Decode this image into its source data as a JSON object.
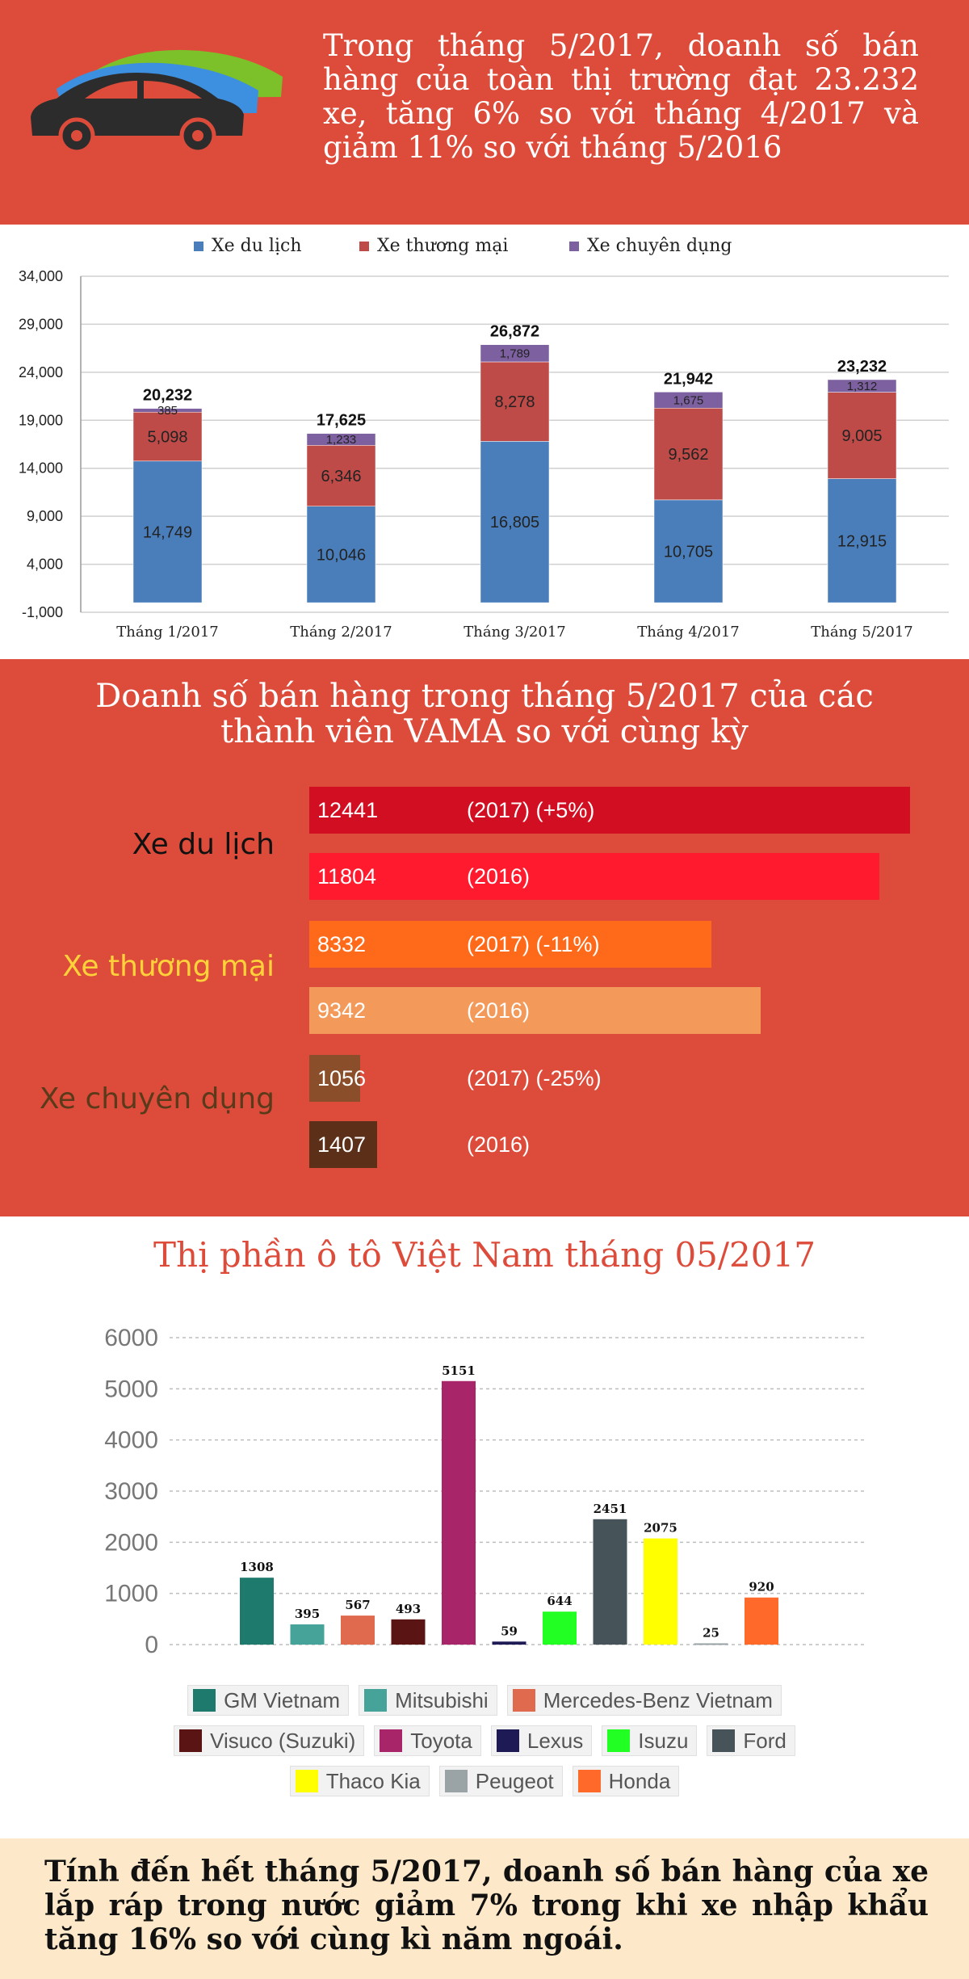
{
  "header": {
    "text": "Trong tháng 5/2017, doanh số bán hàng của toàn thị trường đạt 23.232 xe, tăng 6% so với tháng 4/2017 và giảm 11% so với tháng 5/2016"
  },
  "vama": {
    "title_line1": "Doanh số bán hàng trong tháng 5/2017 của các",
    "title_line2": "thành viên VAMA so với cùng kỳ",
    "groups": [
      {
        "label": "Xe du lịch",
        "label_color": "#111111",
        "value_2017": 12441,
        "value_2016": 11804,
        "value_2017_text": "12441",
        "value_2016_text": "11804",
        "note_2017": "(2017)  (+5%)",
        "note_2016": "(2016)",
        "color_2017": "#d20f22",
        "color_2016": "#ff1a2e"
      },
      {
        "label": "Xe thương mại",
        "label_color": "#ffd23a",
        "value_2017": 8332,
        "value_2016": 9342,
        "value_2017_text": "8332",
        "value_2016_text": "9342",
        "note_2017": "(2017)  (-11%)",
        "note_2016": "(2016)",
        "color_2017": "#ff6a1a",
        "color_2016": "#f39a5a"
      },
      {
        "label": "Xe chuyên dụng",
        "label_color": "#5a3a1a",
        "value_2017": 1056,
        "value_2016": 1407,
        "value_2017_text": "1056",
        "value_2016_text": "1407",
        "note_2017": "(2017) (-25%)",
        "note_2016": "(2016)",
        "color_2017": "#8a4e2a",
        "color_2016": "#5c3018"
      }
    ]
  },
  "share": {
    "title": "Thị phần ô tô Việt Nam tháng 05/2017"
  },
  "footer": {
    "text": "Tính đến hết tháng 5/2017, doanh số bán hàng của xe lắp ráp trong nước giảm 7% trong khi xe nhập khẩu tăng 16% so với cùng kì năm ngoái."
  },
  "chart_data": [
    {
      "type": "bar",
      "stacked": true,
      "categories": [
        "Tháng 1/2017",
        "Tháng 2/2017",
        "Tháng 3/2017",
        "Tháng 4/2017",
        "Tháng 5/2017"
      ],
      "series": [
        {
          "name": "Xe du lịch",
          "color": "#4a7ebb",
          "values": [
            14749,
            10046,
            16805,
            10705,
            12915
          ],
          "labels": [
            "14,749",
            "10,046",
            "16,805",
            "10,705",
            "12,915"
          ]
        },
        {
          "name": "Xe thương mại",
          "color": "#be4b48",
          "values": [
            5098,
            6346,
            8278,
            9562,
            9005
          ],
          "labels": [
            "5,098",
            "6,346",
            "8,278",
            "9,562",
            "9,005"
          ]
        },
        {
          "name": "Xe chuyên dụng",
          "color": "#7d60a0",
          "values": [
            385,
            1233,
            1789,
            1675,
            1312
          ],
          "labels": [
            "385",
            "1,233",
            "1,789",
            "1,675",
            "1,312"
          ]
        }
      ],
      "totals": [
        20232,
        17625,
        26872,
        21942,
        23232
      ],
      "total_labels": [
        "20,232",
        "17,625",
        "26,872",
        "21,942",
        "23,232"
      ],
      "y_ticks": [
        -1000,
        4000,
        9000,
        14000,
        19000,
        24000,
        29000,
        34000
      ],
      "y_tick_labels": [
        "-1,000",
        "4,000",
        "9,000",
        "14,000",
        "19,000",
        "24,000",
        "29,000",
        "34,000"
      ],
      "ylim": [
        -1000,
        34000
      ],
      "grid": true,
      "legend_position": "top"
    },
    {
      "type": "bar",
      "categories": [
        "GM Vietnam",
        "Mitsubishi",
        "Mercedes-Benz Vietnam",
        "Visuco (Suzuki)",
        "Toyota",
        "Lexus",
        "Isuzu",
        "Ford",
        "Thaco Kia",
        "Peugeot",
        "Honda"
      ],
      "values": [
        1308,
        395,
        567,
        493,
        5151,
        59,
        644,
        2451,
        2075,
        25,
        920
      ],
      "colors": [
        "#1f7a6e",
        "#46a399",
        "#e06a4e",
        "#5a1414",
        "#a8256a",
        "#1e1a55",
        "#22ff22",
        "#46545a",
        "#ffff00",
        "#9aa3a6",
        "#ff6a2a"
      ],
      "y_ticks": [
        0,
        1000,
        2000,
        3000,
        4000,
        5000,
        6000
      ],
      "ylim": [
        0,
        6000
      ],
      "grid": true,
      "legend_position": "bottom"
    }
  ]
}
